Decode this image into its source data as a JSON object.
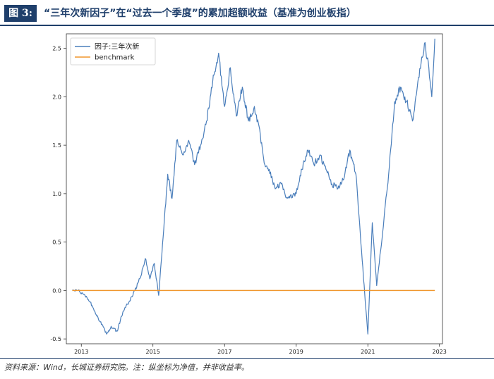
{
  "header": {
    "figure_label": "图 3:",
    "title": "“三年次新因子”在“过去一个季度”的累加超额收益（基准为创业板指）"
  },
  "footer": {
    "source": "资料来源：Wind，长城证券研究院。注：纵坐标为净值，并非收益率。"
  },
  "chart_data": {
    "type": "line",
    "title": "",
    "xlabel": "",
    "ylabel": "",
    "xlim": [
      "2012-08-01",
      "2023-02-01"
    ],
    "ylim": [
      -0.55,
      2.65
    ],
    "x_ticks": [
      "2013",
      "2015",
      "2017",
      "2019",
      "2021",
      "2023"
    ],
    "y_ticks": [
      "-0.5",
      "0.0",
      "0.5",
      "1.0",
      "1.5",
      "2.0",
      "2.5"
    ],
    "grid": false,
    "legend_position": "top-left",
    "series": [
      {
        "name": "因子:三年次新",
        "color": "#4a7ebb",
        "points": [
          [
            "2012-10-01",
            0.0
          ],
          [
            "2012-12-01",
            0.0
          ],
          [
            "2013-02-01",
            -0.04
          ],
          [
            "2013-04-01",
            -0.12
          ],
          [
            "2013-06-01",
            -0.25
          ],
          [
            "2013-08-01",
            -0.35
          ],
          [
            "2013-09-15",
            -0.45
          ],
          [
            "2013-11-01",
            -0.37
          ],
          [
            "2014-01-01",
            -0.42
          ],
          [
            "2014-03-01",
            -0.22
          ],
          [
            "2014-05-01",
            -0.12
          ],
          [
            "2014-07-01",
            0.0
          ],
          [
            "2014-09-01",
            0.15
          ],
          [
            "2014-10-15",
            0.33
          ],
          [
            "2014-12-01",
            0.12
          ],
          [
            "2015-01-15",
            0.28
          ],
          [
            "2015-03-01",
            -0.05
          ],
          [
            "2015-04-15",
            0.55
          ],
          [
            "2015-06-01",
            1.2
          ],
          [
            "2015-07-15",
            0.95
          ],
          [
            "2015-09-01",
            1.55
          ],
          [
            "2015-11-01",
            1.4
          ],
          [
            "2016-01-01",
            1.55
          ],
          [
            "2016-03-01",
            1.3
          ],
          [
            "2016-05-01",
            1.5
          ],
          [
            "2016-07-01",
            1.75
          ],
          [
            "2016-09-01",
            2.15
          ],
          [
            "2016-11-01",
            2.45
          ],
          [
            "2017-01-01",
            1.9
          ],
          [
            "2017-03-01",
            2.3
          ],
          [
            "2017-05-01",
            1.8
          ],
          [
            "2017-07-01",
            2.1
          ],
          [
            "2017-09-01",
            1.75
          ],
          [
            "2017-11-01",
            1.9
          ],
          [
            "2018-01-01",
            1.6
          ],
          [
            "2018-02-15",
            1.3
          ],
          [
            "2018-04-01",
            1.25
          ],
          [
            "2018-06-01",
            1.05
          ],
          [
            "2018-08-01",
            1.1
          ],
          [
            "2018-10-01",
            0.95
          ],
          [
            "2019-01-01",
            1.0
          ],
          [
            "2019-03-01",
            1.25
          ],
          [
            "2019-05-01",
            1.45
          ],
          [
            "2019-07-01",
            1.3
          ],
          [
            "2019-09-01",
            1.4
          ],
          [
            "2019-11-01",
            1.25
          ],
          [
            "2020-01-01",
            1.1
          ],
          [
            "2020-03-01",
            1.05
          ],
          [
            "2020-05-01",
            1.15
          ],
          [
            "2020-07-01",
            1.45
          ],
          [
            "2020-09-01",
            1.2
          ],
          [
            "2020-10-15",
            0.6
          ],
          [
            "2020-12-01",
            -0.05
          ],
          [
            "2021-01-01",
            -0.45
          ],
          [
            "2021-02-15",
            0.7
          ],
          [
            "2021-04-01",
            0.05
          ],
          [
            "2021-06-01",
            0.6
          ],
          [
            "2021-08-01",
            1.2
          ],
          [
            "2021-10-01",
            1.95
          ],
          [
            "2021-12-01",
            2.1
          ],
          [
            "2022-02-01",
            1.95
          ],
          [
            "2022-04-01",
            1.75
          ],
          [
            "2022-06-01",
            2.2
          ],
          [
            "2022-08-01",
            2.55
          ],
          [
            "2022-09-15",
            2.3
          ],
          [
            "2022-10-15",
            2.0
          ],
          [
            "2022-11-15",
            2.6
          ]
        ]
      },
      {
        "name": "benchmark",
        "color": "#f0962c",
        "points": [
          [
            "2012-10-01",
            0.0
          ],
          [
            "2022-11-15",
            0.0
          ]
        ]
      }
    ]
  }
}
